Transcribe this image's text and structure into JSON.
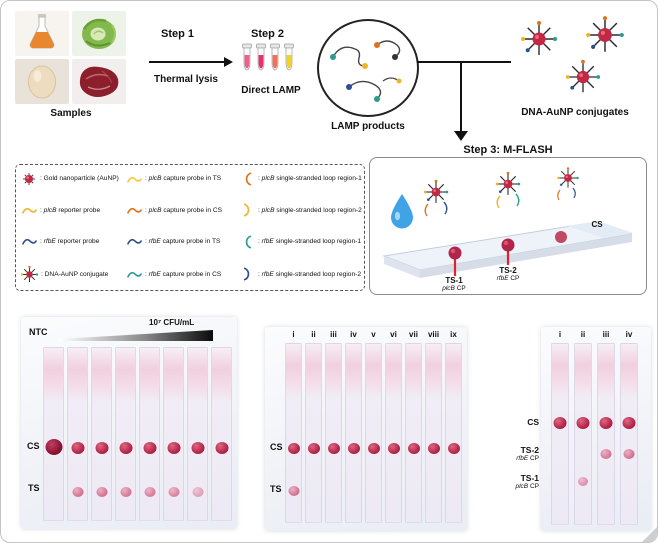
{
  "workflow": {
    "samples_label": "Samples",
    "sample_items": [
      "flask",
      "cabbage",
      "egg",
      "meat"
    ],
    "step1_label": "Step 1",
    "step1_sub": "Thermal lysis",
    "step2_label": "Step 2",
    "step2_sub": "Direct LAMP",
    "tube_colors": [
      "#ef5e8c",
      "#e3326d",
      "#f2705b",
      "#f5d02a"
    ],
    "lamp_products_label": "LAMP products",
    "conjugates_label": "DNA-AuNP conjugates",
    "step3_label": "Step 3: M-FLASH"
  },
  "legend": {
    "rows": [
      {
        "c1": {
          "icon": "aunp",
          "pre": ": Gold nanoparticle (AuNP)",
          "gene": "",
          "post": ""
        },
        "c2": {
          "icon": "plcb-capture-ts",
          "pre": ": ",
          "gene": "plcB",
          "post": " capture probe in TS"
        },
        "c3": {
          "icon": "plcb-loop-1",
          "pre": ": ",
          "gene": "plcB",
          "post": " single-stranded loop region-1"
        }
      },
      {
        "c1": {
          "icon": "plcb-reporter",
          "pre": ": ",
          "gene": "plcB",
          "post": " reporter probe"
        },
        "c2": {
          "icon": "plcb-capture-cs",
          "pre": ": ",
          "gene": "plcB",
          "post": " capture probe in CS"
        },
        "c3": {
          "icon": "plcb-loop-2",
          "pre": ": ",
          "gene": "plcB",
          "post": " single-stranded loop region-2"
        }
      },
      {
        "c1": {
          "icon": "rfbe-reporter",
          "pre": ": ",
          "gene": "rfbE",
          "post": " reporter probe"
        },
        "c2": {
          "icon": "rfbe-capture-ts",
          "pre": ": ",
          "gene": "rfbE",
          "post": " capture probe in TS"
        },
        "c3": {
          "icon": "rfbe-loop-1",
          "pre": ": ",
          "gene": "rfbE",
          "post": " single-stranded loop region-1"
        }
      },
      {
        "c1": {
          "icon": "conjugate",
          "pre": ": DNA-AuNP conjugate",
          "gene": "",
          "post": ""
        },
        "c2": {
          "icon": "rfbe-capture-cs",
          "pre": ": ",
          "gene": "rfbE",
          "post": " capture probe in CS"
        },
        "c3": {
          "icon": "rfbe-loop-2",
          "pre": ": ",
          "gene": "rfbE",
          "post": " single-stranded loop region-2"
        }
      }
    ]
  },
  "mflash": {
    "cs_label": "CS",
    "ts1_label": "TS-1",
    "ts1_gene": "plcB",
    "ts1_post": " CP",
    "ts2_label": "TS-2",
    "ts2_gene": "rfbE",
    "ts2_post": " CP"
  },
  "panels": {
    "left": {
      "ntc_label": "NTC",
      "concentration_label": "10⁷ CFU/mL",
      "cs_label": "CS",
      "ts_label": "TS",
      "strip_count": 8,
      "cs_dots": [
        1,
        0.95,
        0.9,
        0.9,
        0.9,
        0.9,
        0.85,
        0.85
      ],
      "ts_dots": [
        0,
        0.9,
        0.85,
        0.8,
        0.75,
        0.7,
        0.45,
        0
      ]
    },
    "middle": {
      "column_labels": [
        "i",
        "ii",
        "iii",
        "iv",
        "v",
        "vi",
        "vii",
        "viii",
        "ix"
      ],
      "cs_label": "CS",
      "ts_label": "TS",
      "cs_dots": [
        1,
        1,
        1,
        1,
        1,
        1,
        1,
        1,
        1
      ],
      "ts_dots": [
        0.9,
        0,
        0,
        0,
        0,
        0,
        0,
        0,
        0
      ]
    },
    "right": {
      "column_labels": [
        "i",
        "ii",
        "iii",
        "iv"
      ],
      "rows": [
        {
          "label": "CS",
          "gene": "",
          "post": "",
          "dots": [
            1,
            1,
            1,
            1
          ]
        },
        {
          "label": "TS-2",
          "gene": "rfbE",
          "post": " CP",
          "dots": [
            0,
            0,
            0.8,
            0.85
          ]
        },
        {
          "label": "TS-1",
          "gene": "plcB",
          "post": " CP",
          "dots": [
            0,
            0.6,
            0,
            0
          ]
        }
      ]
    }
  },
  "colors": {
    "aunp_red": "#c22743",
    "dot_crimson": "#b3244a",
    "plcb_yellow": "#f0b429",
    "plcb_gold": "#f5c53d",
    "plcb_orange": "#e2711d",
    "rfbe_navy": "#2d4f8f",
    "rfbe_teal": "#2a9d8f",
    "droplet_blue": "#3fa3e6"
  }
}
